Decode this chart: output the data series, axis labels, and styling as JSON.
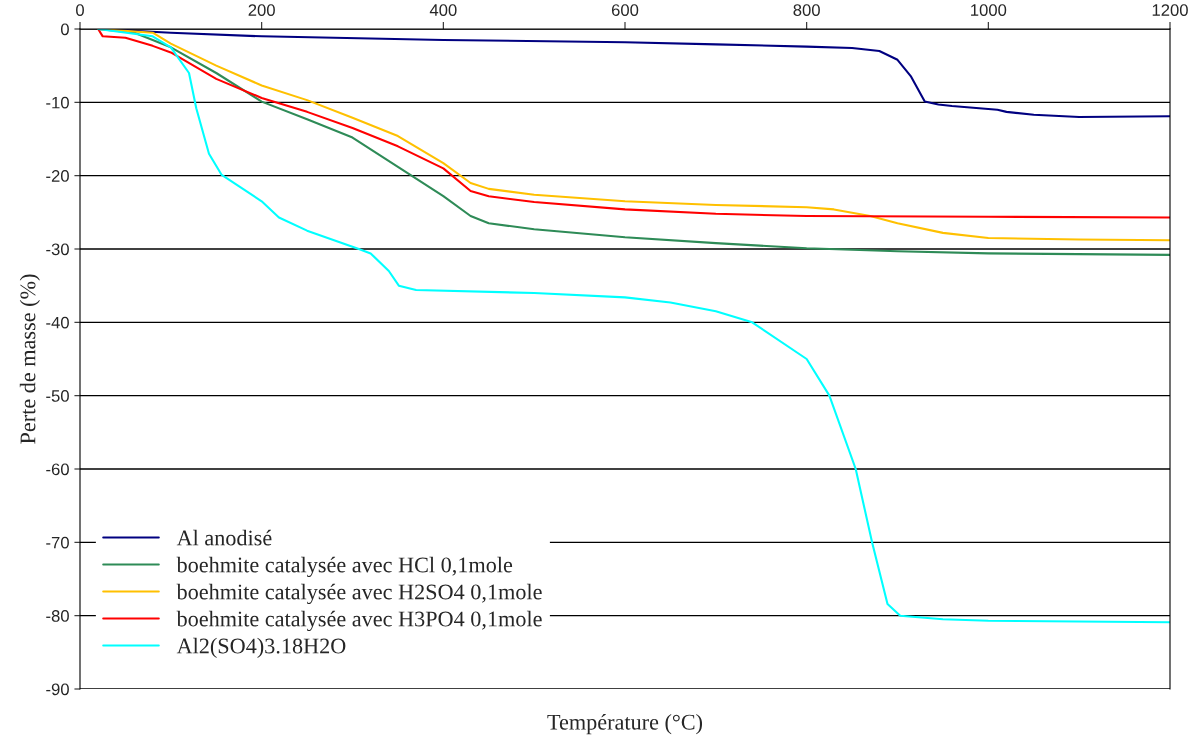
{
  "chart_data": {
    "type": "line",
    "xlabel": "Température (°C)",
    "ylabel": "Perte de masse (%)",
    "xlim": [
      0,
      1200
    ],
    "ylim": [
      -90,
      0
    ],
    "xticks": [
      0,
      200,
      400,
      600,
      800,
      1000,
      1200
    ],
    "yticks": [
      0,
      -10,
      -20,
      -30,
      -40,
      -50,
      -60,
      -70,
      -80,
      -90
    ],
    "grid": "y",
    "legend": "bottom left",
    "marker": "none",
    "line_style": "solid",
    "series": [
      {
        "name": "Al anodisé",
        "color": "#000080",
        "x": [
          20,
          100,
          200,
          400,
          600,
          700,
          800,
          850,
          880,
          900,
          915,
          930,
          945,
          960,
          1000,
          1010,
          1020,
          1050,
          1100,
          1200
        ],
        "values": [
          0,
          -0.5,
          -1,
          -1.5,
          -1.8,
          -2.1,
          -2.4,
          -2.6,
          -3,
          -4.2,
          -6.5,
          -9.9,
          -10.3,
          -10.5,
          -10.9,
          -11,
          -11.3,
          -11.7,
          -12,
          -11.9
        ]
      },
      {
        "name": "boehmite catalysée avec HCl 0,1mole",
        "color": "#2e8b57",
        "x": [
          20,
          60,
          100,
          150,
          200,
          250,
          300,
          350,
          400,
          430,
          450,
          500,
          600,
          700,
          800,
          900,
          1000,
          1200
        ],
        "values": [
          0,
          -0.5,
          -2.5,
          -6,
          -9.9,
          -12.3,
          -14.8,
          -18.8,
          -22.8,
          -25.5,
          -26.5,
          -27.3,
          -28.4,
          -29.2,
          -29.9,
          -30.3,
          -30.6,
          -30.8
        ]
      },
      {
        "name": "boehmite catalysée avec H2SO4 0,1mole",
        "color": "#ffc000",
        "x": [
          20,
          80,
          100,
          150,
          200,
          250,
          300,
          350,
          400,
          430,
          450,
          500,
          600,
          700,
          800,
          830,
          870,
          900,
          950,
          1000,
          1100,
          1200
        ],
        "values": [
          0,
          -0.5,
          -2,
          -5,
          -7.7,
          -9.7,
          -12.1,
          -14.6,
          -18.3,
          -21,
          -21.8,
          -22.6,
          -23.5,
          -24,
          -24.3,
          -24.6,
          -25.5,
          -26.5,
          -27.8,
          -28.5,
          -28.7,
          -28.8
        ]
      },
      {
        "name": "boehmite catalysée avec H3PO4 0,1mole",
        "color": "#ff0000",
        "x": [
          20,
          25,
          50,
          80,
          100,
          150,
          200,
          250,
          300,
          350,
          400,
          430,
          450,
          500,
          600,
          700,
          800,
          1000,
          1200
        ],
        "values": [
          0,
          -1,
          -1.2,
          -2.3,
          -3.2,
          -6.8,
          -9.4,
          -11.3,
          -13.5,
          -16,
          -19,
          -22.1,
          -22.8,
          -23.6,
          -24.6,
          -25.2,
          -25.5,
          -25.6,
          -25.7
        ]
      },
      {
        "name": "Al2(SO4)3.18H2O",
        "color": "#00ffff",
        "x": [
          20,
          80,
          100,
          120,
          128,
          142,
          156,
          200,
          219,
          250,
          307,
          320,
          340,
          351,
          370,
          500,
          600,
          650,
          700,
          740,
          800,
          825,
          854,
          872,
          889,
          903,
          950,
          1000,
          1200
        ],
        "values": [
          0,
          -1,
          -2.5,
          -6,
          -10.8,
          -17,
          -19.9,
          -23.5,
          -25.7,
          -27.5,
          -30,
          -30.6,
          -33,
          -35,
          -35.6,
          -36,
          -36.6,
          -37.3,
          -38.5,
          -40,
          -45,
          -50,
          -60,
          -70,
          -78.4,
          -80,
          -80.5,
          -80.7,
          -80.9
        ]
      }
    ]
  }
}
